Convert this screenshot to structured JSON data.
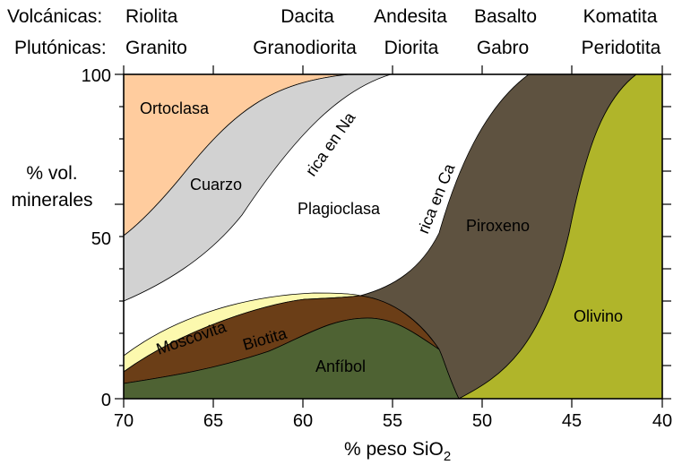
{
  "header": {
    "volcanic_label": "Volcánicas:",
    "plutonic_label": "Plutónicas:",
    "rocks": [
      {
        "volcanic": "Riolita",
        "plutonic": "Granito"
      },
      {
        "volcanic": "Dacita",
        "plutonic": "Granodiorita"
      },
      {
        "volcanic": "Andesita",
        "plutonic": "Diorita"
      },
      {
        "volcanic": "Basalto",
        "plutonic": "Gabro"
      },
      {
        "volcanic": "Komatita",
        "plutonic": "Peridotita"
      }
    ]
  },
  "y_axis": {
    "label_line1": "% vol.",
    "label_line2": "minerales",
    "ticks": [
      "100",
      "50",
      "0"
    ]
  },
  "x_axis": {
    "label_prefix": "% peso SiO",
    "label_sub": "2",
    "ticks": [
      "70",
      "65",
      "60",
      "55",
      "50",
      "45",
      "40"
    ]
  },
  "minerals": {
    "ortoclasa": "Ortoclasa",
    "cuarzo": "Cuarzo",
    "plagioclasa": "Plagioclasa",
    "rica_na": "rica en Na",
    "rica_ca": "rica en Ca",
    "piroxeno": "Piroxeno",
    "moscovita": "Moscovita",
    "biotita": "Biotita",
    "anfibol": "Anfíbol",
    "olivino": "Olivino"
  },
  "colors": {
    "ortoclasa": "#ffcc9e",
    "cuarzo": "#d2d2d2",
    "plagioclasa": "#ffffff",
    "moscovita": "#fcf9ae",
    "biotita": "#6b3e17",
    "anfibol": "#4e6233",
    "piroxeno": "#5e5240",
    "olivino": "#b0b52a"
  }
}
